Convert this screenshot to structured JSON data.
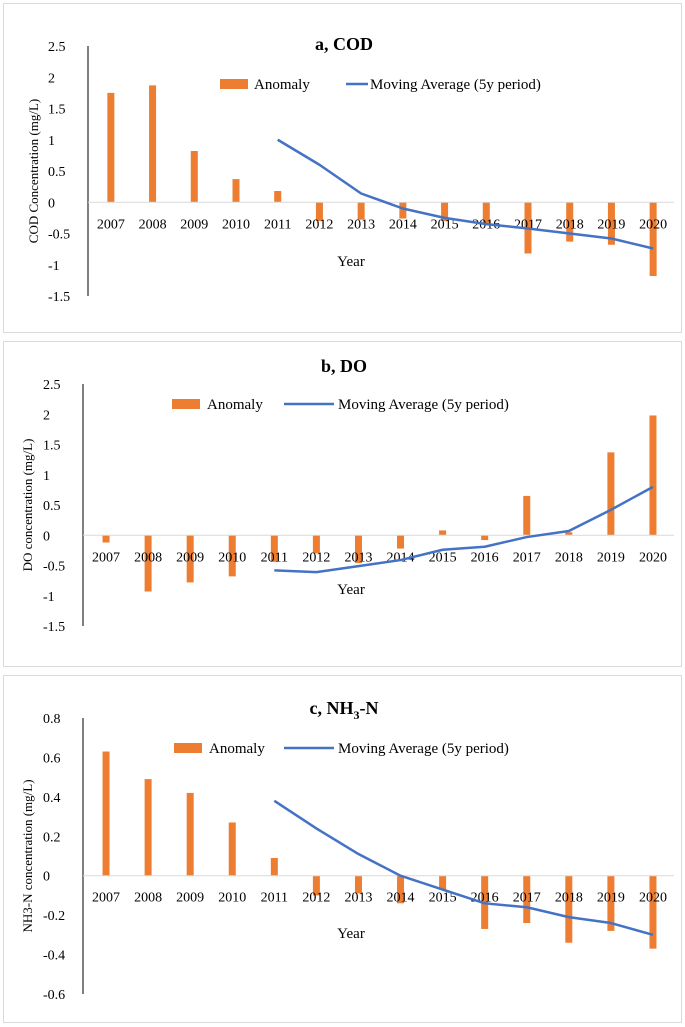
{
  "chart_data": [
    {
      "id": "a",
      "type": "bar+line",
      "title": "a, COD",
      "title_base": "a, COD",
      "title_sub": "",
      "title_suffix": "",
      "xlabel": "Year",
      "ylabel": "COD Concentration (mg/L)",
      "ylim": [
        -1.5,
        2.5
      ],
      "yticks": [
        -1.5,
        -1,
        -0.5,
        0,
        0.5,
        1,
        1.5,
        2,
        2.5
      ],
      "categories": [
        "2007",
        "2008",
        "2009",
        "2010",
        "2011",
        "2012",
        "2013",
        "2014",
        "2015",
        "2016",
        "2017",
        "2018",
        "2019",
        "2020"
      ],
      "series": [
        {
          "name": "Anomaly",
          "type": "bar",
          "color": "#ED7D31",
          "values": [
            1.75,
            1.87,
            0.82,
            0.37,
            0.18,
            -0.3,
            -0.28,
            -0.26,
            -0.3,
            -0.35,
            -0.82,
            -0.63,
            -0.68,
            -1.18
          ]
        },
        {
          "name": "Moving Average (5y period)",
          "type": "line",
          "color": "#4472C4",
          "values": [
            null,
            null,
            null,
            null,
            1.0,
            0.6,
            0.14,
            -0.1,
            -0.25,
            -0.35,
            -0.42,
            -0.5,
            -0.58,
            -0.74
          ]
        }
      ],
      "legend": "top-right"
    },
    {
      "id": "b",
      "type": "bar+line",
      "title": "b, DO",
      "title_base": "b, DO",
      "title_sub": "",
      "title_suffix": "",
      "xlabel": "Year",
      "ylabel": "DO concentration (mg/L)",
      "ylim": [
        -1.5,
        2.5
      ],
      "yticks": [
        -1.5,
        -1,
        -0.5,
        0,
        0.5,
        1,
        1.5,
        2,
        2.5
      ],
      "categories": [
        "2007",
        "2008",
        "2009",
        "2010",
        "2011",
        "2012",
        "2013",
        "2014",
        "2015",
        "2016",
        "2017",
        "2018",
        "2019",
        "2020"
      ],
      "series": [
        {
          "name": "Anomaly",
          "type": "bar",
          "color": "#ED7D31",
          "values": [
            -0.12,
            -0.93,
            -0.78,
            -0.68,
            -0.44,
            -0.3,
            -0.46,
            -0.22,
            0.08,
            -0.08,
            0.65,
            0.05,
            1.37,
            1.98
          ]
        },
        {
          "name": "Moving Average (5y period)",
          "type": "line",
          "color": "#4472C4",
          "values": [
            null,
            null,
            null,
            null,
            -0.58,
            -0.61,
            -0.51,
            -0.41,
            -0.24,
            -0.19,
            -0.03,
            0.07,
            0.42,
            0.8
          ]
        }
      ],
      "legend": "top-right"
    },
    {
      "id": "c",
      "type": "bar+line",
      "title": "c, NH3-N",
      "title_base": "c, NH",
      "title_sub": "3",
      "title_suffix": "-N",
      "xlabel": "Year",
      "ylabel": "NH3-N concentration (mg/L)",
      "ylim": [
        -0.6,
        0.8
      ],
      "yticks": [
        -0.6,
        -0.4,
        -0.2,
        0,
        0.2,
        0.4,
        0.6,
        0.8
      ],
      "categories": [
        "2007",
        "2008",
        "2009",
        "2010",
        "2011",
        "2012",
        "2013",
        "2014",
        "2015",
        "2016",
        "2017",
        "2018",
        "2019",
        "2020"
      ],
      "series": [
        {
          "name": "Anomaly",
          "type": "bar",
          "color": "#ED7D31",
          "values": [
            0.63,
            0.49,
            0.42,
            0.27,
            0.09,
            -0.1,
            -0.09,
            -0.14,
            -0.07,
            -0.27,
            -0.24,
            -0.34,
            -0.28,
            -0.37
          ]
        },
        {
          "name": "Moving Average (5y period)",
          "type": "line",
          "color": "#4472C4",
          "values": [
            null,
            null,
            null,
            null,
            0.38,
            0.24,
            0.11,
            0.0,
            -0.07,
            -0.14,
            -0.16,
            -0.21,
            -0.24,
            -0.3
          ]
        }
      ],
      "legend": "top-right"
    }
  ]
}
